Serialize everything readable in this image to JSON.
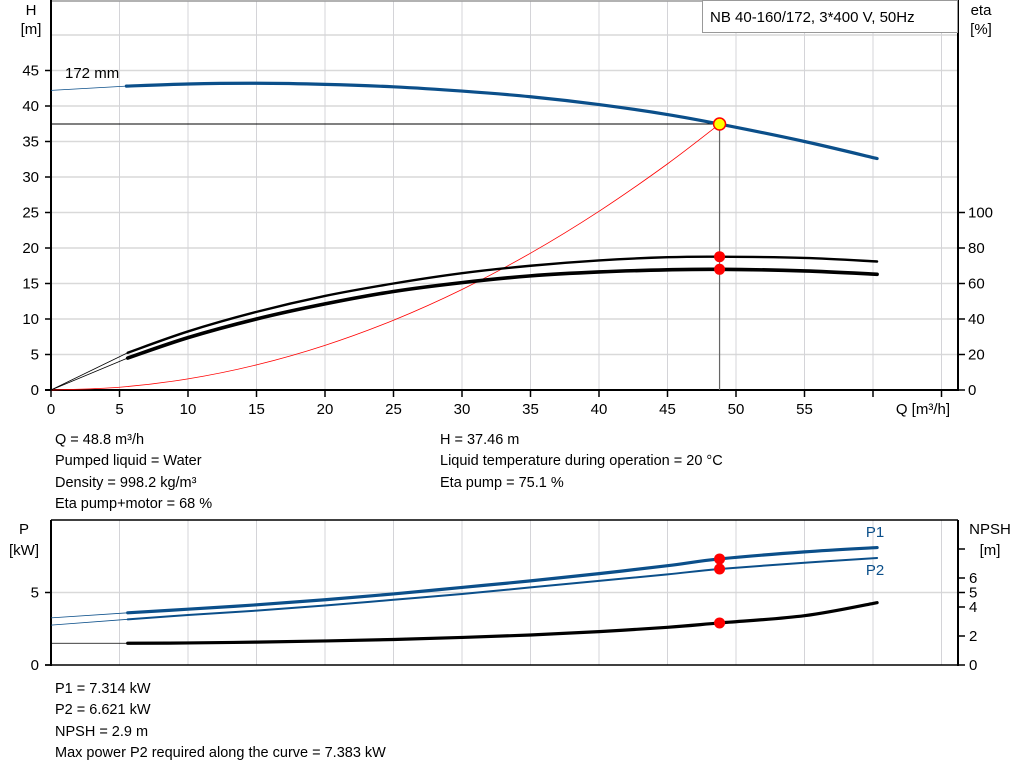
{
  "chart_data": [
    {
      "type": "line",
      "title": "NB 40-160/172, 3*400 V, 50Hz",
      "xlabel": "Q [m³/h]",
      "ylabel_left": [
        "H",
        "[m]"
      ],
      "ylabel_right": [
        "eta",
        "[%]"
      ],
      "xlim": [
        0,
        66
      ],
      "ylim_left": [
        0,
        50
      ],
      "ylim_right": [
        0,
        100
      ],
      "x_ticks": [
        0,
        5,
        10,
        15,
        20,
        25,
        30,
        35,
        40,
        45,
        50,
        55,
        60,
        65
      ],
      "x_tick_labels": [
        "0",
        "5",
        "10",
        "15",
        "20",
        "25",
        "30",
        "35",
        "40",
        "45",
        "50",
        "55",
        "",
        ""
      ],
      "y_left_ticks": [
        0,
        5,
        10,
        15,
        20,
        25,
        30,
        35,
        40,
        45
      ],
      "y_right_ticks": [
        0,
        20,
        40,
        60,
        80,
        100
      ],
      "grid": true,
      "curve_label": "172 mm",
      "series": [
        {
          "role": "head",
          "axis": "left",
          "color": "#0b4f8a",
          "extension": [
            [
              0,
              42.2
            ],
            [
              5.5,
              42.8
            ]
          ],
          "points": [
            [
              5.5,
              42.8
            ],
            [
              10,
              43.1
            ],
            [
              15,
              43.2
            ],
            [
              20,
              43.05
            ],
            [
              25,
              42.7
            ],
            [
              30,
              42.1
            ],
            [
              35,
              41.3
            ],
            [
              40,
              40.2
            ],
            [
              45,
              38.8
            ],
            [
              48.8,
              37.46
            ],
            [
              55,
              35.0
            ],
            [
              60.3,
              32.6
            ]
          ]
        },
        {
          "role": "eta-pump",
          "axis": "right",
          "color": "#000000",
          "extension": [
            [
              0,
              0
            ],
            [
              5.6,
              21
            ]
          ],
          "points": [
            [
              5.6,
              21
            ],
            [
              10,
              33
            ],
            [
              15,
              44
            ],
            [
              20,
              53
            ],
            [
              25,
              60
            ],
            [
              30,
              65.8
            ],
            [
              35,
              70
            ],
            [
              40,
              73
            ],
            [
              45,
              74.8
            ],
            [
              48.8,
              75.1
            ],
            [
              55,
              74.4
            ],
            [
              60.3,
              72.4
            ]
          ]
        },
        {
          "role": "eta-pump-motor",
          "axis": "right",
          "color": "#000000",
          "extension": [
            [
              0,
              0
            ],
            [
              5.6,
              18
            ]
          ],
          "points": [
            [
              5.6,
              18
            ],
            [
              10,
              29.5
            ],
            [
              15,
              40
            ],
            [
              20,
              48.5
            ],
            [
              25,
              55.5
            ],
            [
              30,
              60.5
            ],
            [
              35,
              64.3
            ],
            [
              40,
              66.5
            ],
            [
              45,
              67.7
            ],
            [
              48.8,
              68
            ],
            [
              55,
              67.1
            ],
            [
              60.3,
              65.2
            ]
          ]
        },
        {
          "role": "system-curve",
          "axis": "left",
          "color": "#ff0000",
          "points": [
            [
              0,
              0
            ],
            [
              5,
              0.39
            ],
            [
              10,
              1.57
            ],
            [
              15,
              3.54
            ],
            [
              20,
              6.29
            ],
            [
              25,
              9.83
            ],
            [
              30,
              14.16
            ],
            [
              35,
              19.27
            ],
            [
              40,
              25.17
            ],
            [
              45,
              31.85
            ],
            [
              48.8,
              37.46
            ]
          ]
        }
      ],
      "duty_point": {
        "q": 48.8,
        "h": 37.46,
        "eta_pump": 75.1,
        "eta_pump_motor": 68,
        "fill": "#ffff00",
        "stroke": "#ff0000"
      }
    },
    {
      "type": "line",
      "ylabel_left": [
        "P",
        "[kW]"
      ],
      "ylabel_right": [
        "NPSH",
        "[m]"
      ],
      "xlim": [
        0,
        66
      ],
      "ylim_left": [
        0,
        10
      ],
      "ylim_right": [
        0,
        10
      ],
      "x_ticks": [
        0,
        5,
        10,
        15,
        20,
        25,
        30,
        35,
        40,
        45,
        50,
        55,
        60,
        65
      ],
      "y_left_ticks": [
        0,
        5
      ],
      "y_right_ticks": [
        0,
        2,
        4,
        5,
        6,
        8
      ],
      "y_right_tick_labels": [
        "0",
        "2",
        "4",
        "5",
        "6",
        ""
      ],
      "grid": true,
      "series": [
        {
          "name": "P1",
          "axis": "left",
          "color": "#0b4f8a",
          "extension": [
            [
              0,
              3.25
            ],
            [
              5.6,
              3.6
            ]
          ],
          "points": [
            [
              5.6,
              3.6
            ],
            [
              10,
              3.85
            ],
            [
              15,
              4.15
            ],
            [
              20,
              4.5
            ],
            [
              25,
              4.9
            ],
            [
              30,
              5.35
            ],
            [
              35,
              5.8
            ],
            [
              40,
              6.3
            ],
            [
              45,
              6.85
            ],
            [
              48.8,
              7.314
            ],
            [
              55,
              7.8
            ],
            [
              60.3,
              8.1
            ]
          ]
        },
        {
          "name": "P2",
          "axis": "left",
          "color": "#0b4f8a",
          "extension": [
            [
              0,
              2.75
            ],
            [
              5.6,
              3.15
            ]
          ],
          "points": [
            [
              5.6,
              3.15
            ],
            [
              10,
              3.45
            ],
            [
              15,
              3.75
            ],
            [
              20,
              4.1
            ],
            [
              25,
              4.5
            ],
            [
              30,
              4.9
            ],
            [
              35,
              5.35
            ],
            [
              40,
              5.8
            ],
            [
              45,
              6.25
            ],
            [
              48.8,
              6.621
            ],
            [
              55,
              7.05
            ],
            [
              60.3,
              7.383
            ]
          ]
        },
        {
          "role": "npsh",
          "axis": "right",
          "color": "#000000",
          "extension": [
            [
              0,
              1.5
            ],
            [
              5.6,
              1.5
            ]
          ],
          "points": [
            [
              5.6,
              1.5
            ],
            [
              10,
              1.52
            ],
            [
              15,
              1.58
            ],
            [
              20,
              1.66
            ],
            [
              25,
              1.76
            ],
            [
              30,
              1.9
            ],
            [
              35,
              2.07
            ],
            [
              40,
              2.3
            ],
            [
              45,
              2.6
            ],
            [
              48.8,
              2.9
            ],
            [
              55,
              3.4
            ],
            [
              60.3,
              4.3
            ]
          ]
        }
      ],
      "duty_point": {
        "q": 48.8,
        "p1": 7.314,
        "p2": 6.621,
        "npsh": 2.9
      }
    }
  ],
  "info_top_left": [
    "Q = 48.8 m³/h",
    "Pumped liquid = Water",
    "Density = 998.2 kg/m³",
    "Eta pump+motor = 68 %"
  ],
  "info_top_right": [
    "H = 37.46 m",
    "Liquid temperature during operation = 20 °C",
    "Eta pump = 75.1 %"
  ],
  "info_bottom": [
    "P1 = 7.314 kW",
    "P2 = 6.621 kW",
    "NPSH = 2.9 m",
    "Max power P2 required along the curve = 7.383 kW"
  ]
}
